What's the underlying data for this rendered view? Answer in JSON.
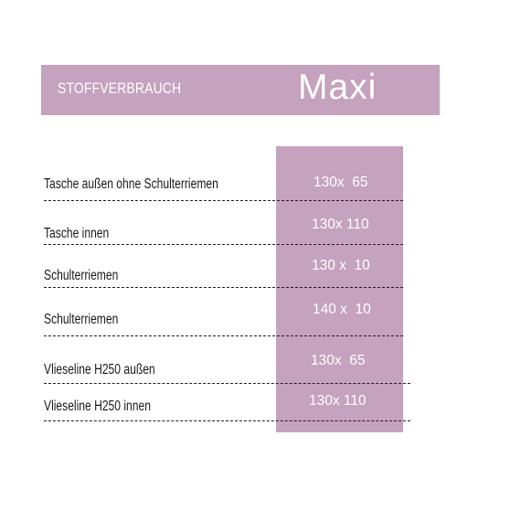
{
  "header": {
    "label": "STOFFVERBRAUCH",
    "size": "Maxi"
  },
  "rows": [
    {
      "label": "Tasche außen ohne Schulterriemen",
      "value": "130x  65"
    },
    {
      "label": "Tasche innen",
      "value": "130x 110"
    },
    {
      "label": "Schulterriemen",
      "value": "130 x  10"
    },
    {
      "label": "Schulterriemen",
      "value": "140 x  10"
    },
    {
      "label": "Vlieseline   H250   außen",
      "value": "130x  65"
    },
    {
      "label": "Vlieseline H250 innen",
      "value": "130x 110"
    }
  ],
  "colors": {
    "accent": "#c5a2be",
    "text": "#1a1a1a",
    "on_accent": "#ffffff"
  }
}
